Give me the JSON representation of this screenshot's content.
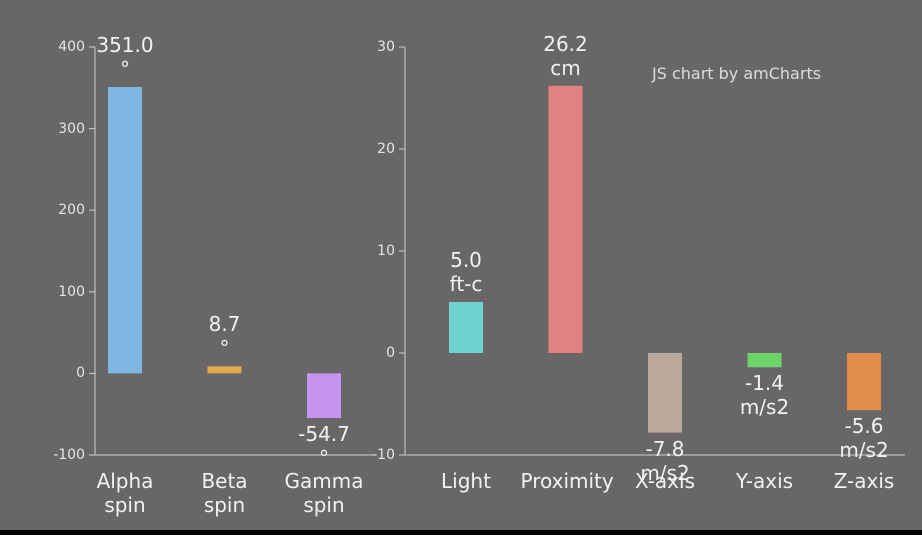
{
  "chart_data": [
    {
      "type": "bar",
      "categories": [
        "Alpha spin",
        "Beta spin",
        "Gamma spin"
      ],
      "values": [
        351.0,
        8.7,
        -54.7
      ],
      "value_labels": [
        "351.0\n°",
        "8.7\n°",
        "-54.7\n°"
      ],
      "colors": [
        "#7fb6e2",
        "#e2a84e",
        "#c794f2"
      ],
      "ylim": [
        -100,
        400
      ],
      "yticks": [
        -100,
        0,
        100,
        200,
        300,
        400
      ]
    },
    {
      "type": "bar",
      "credit": "JS chart by amCharts",
      "categories": [
        "Light",
        "Proximity",
        "X-axis",
        "Y-axis",
        "Z-axis"
      ],
      "values": [
        5.0,
        26.2,
        -7.8,
        -1.4,
        -5.6
      ],
      "value_labels": [
        "5.0\nft-c",
        "26.2\ncm",
        "-7.8\nm/s2",
        "-1.4\nm/s2",
        "-5.6\nm/s2"
      ],
      "colors": [
        "#6fd2cf",
        "#e08282",
        "#baa99b",
        "#6fd36b",
        "#e08c4c"
      ],
      "ylim": [
        -10,
        30
      ],
      "yticks": [
        -10,
        0,
        10,
        20,
        30
      ]
    }
  ]
}
